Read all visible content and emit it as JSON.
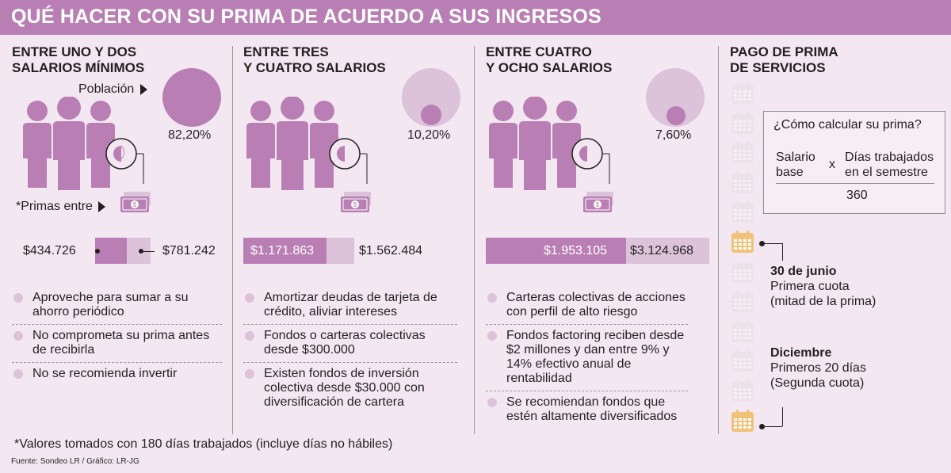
{
  "title": "QUÉ HACER CON SU PRIMA DE ACUERDO A SUS INGRESOS",
  "labels": {
    "poblacion": "Población",
    "primas_entre": "*Primas entre"
  },
  "columns": [
    {
      "title_line1": "ENTRE UNO Y DOS",
      "title_line2": "SALARIOS MÍNIMOS",
      "population_pct": "82,20%",
      "population_value": 0.822,
      "prima_min": "$434.726",
      "prima_max": "$781.242",
      "bullets": [
        "Aproveche para sumar a su ahorro periódico",
        "No comprometa su prima antes de recibirla",
        "No se recomienda invertir"
      ]
    },
    {
      "title_line1": "ENTRE TRES",
      "title_line2": "Y CUATRO SALARIOS",
      "population_pct": "10,20%",
      "population_value": 0.102,
      "prima_min": "$1.171.863",
      "prima_max": "$1.562.484",
      "bullets": [
        "Amortizar deudas de tarjeta de crédito, aliviar intereses",
        "Fondos o carteras colectivas desde $300.000",
        "Existen fondos de inversión colectiva desde $30.000 con diversificación de cartera"
      ]
    },
    {
      "title_line1": "ENTRE CUATRO",
      "title_line2": "Y OCHO SALARIOS",
      "population_pct": "7,60%",
      "population_value": 0.076,
      "prima_min": "$1.953.105",
      "prima_max": "$3.124.968",
      "bullets": [
        "Carteras colectivas de acciones con perfil de alto riesgo",
        "Fondos factoring reciben desde $2 millones y dan entre 9% y 14% efectivo anual de rentabilidad",
        "Se recomiendan fondos que estén altamente diversificados"
      ]
    }
  ],
  "payment": {
    "title_line1": "PAGO DE PRIMA",
    "title_line2": "DE SERVICIOS",
    "formula_title": "¿Cómo calcular su prima?",
    "salario_line1": "Salario",
    "salario_line2": "base",
    "times": "x",
    "dias_line1": "Días trabajados",
    "dias_line2": "en el semestre",
    "divisor": "360",
    "first_date": "30 de junio",
    "first_line1": "Primera cuota",
    "first_line2": "(mitad de la prima)",
    "second_date": "Diciembre",
    "second_line1": "Primeros 20 días",
    "second_line2": "(Segunda cuota)"
  },
  "footnote": "*Valores tomados con 180 días trabajados (incluye días no hábiles)",
  "source": "Fuente: Sondeo LR / Gráfico: LR-JG",
  "colors": {
    "banner": "#b97fb4",
    "accent": "#b97fb4",
    "light": "#dcc3da",
    "calendar_hl": "#f1c27a",
    "calendar": "#ece3ea"
  }
}
